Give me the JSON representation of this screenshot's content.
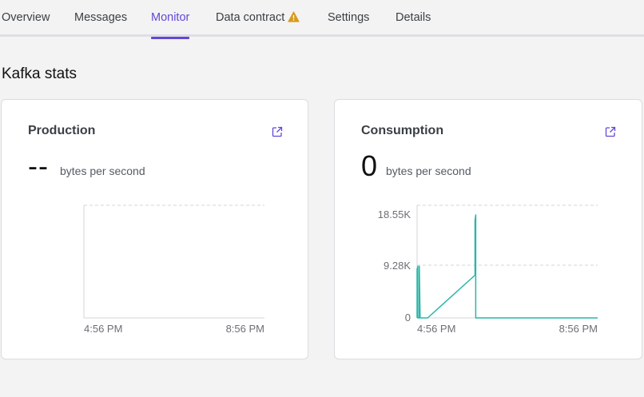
{
  "tabs": [
    {
      "label": "Overview"
    },
    {
      "label": "Messages"
    },
    {
      "label": "Monitor",
      "active": true
    },
    {
      "label": "Data contract",
      "icon": "warning-icon"
    },
    {
      "label": "Settings"
    },
    {
      "label": "Details"
    }
  ],
  "section_title": "Kafka stats",
  "colors": {
    "accent": "#6447d6",
    "series": "#2bb5a8",
    "warning": "#d99b1c"
  },
  "production": {
    "title": "Production",
    "value": "--",
    "unit": "bytes per second",
    "chart_data": {
      "type": "line",
      "x_ticks": [
        "4:56 PM",
        "8:56 PM"
      ],
      "series": []
    }
  },
  "consumption": {
    "title": "Consumption",
    "value": "0",
    "unit": "bytes per second",
    "chart_data": {
      "type": "line",
      "x_ticks": [
        "4:56 PM",
        "8:56 PM"
      ],
      "y_ticks": [
        "18.55K",
        "9.28K",
        "0"
      ],
      "ylim": [
        0,
        18550
      ],
      "x_range": [
        "4:56 PM",
        "8:56 PM"
      ],
      "series": [
        {
          "points": [
            [
              "4:56 PM",
              0
            ],
            [
              "4:56 PM",
              8900
            ],
            [
              "4:56 PM",
              4000
            ],
            [
              "4:57 PM",
              9300
            ],
            [
              "4:57 PM",
              0
            ],
            [
              "4:59 PM",
              0
            ],
            [
              "4:59 PM",
              9300
            ],
            [
              "5:00 PM",
              0
            ],
            [
              "5:01 PM",
              0
            ],
            [
              "5:10 PM",
              0
            ],
            [
              "6:13 PM",
              7700
            ],
            [
              "6:13 PM",
              17500
            ],
            [
              "6:14 PM",
              18550
            ],
            [
              "6:14 PM",
              0
            ],
            [
              "8:56 PM",
              0
            ]
          ]
        }
      ]
    }
  }
}
